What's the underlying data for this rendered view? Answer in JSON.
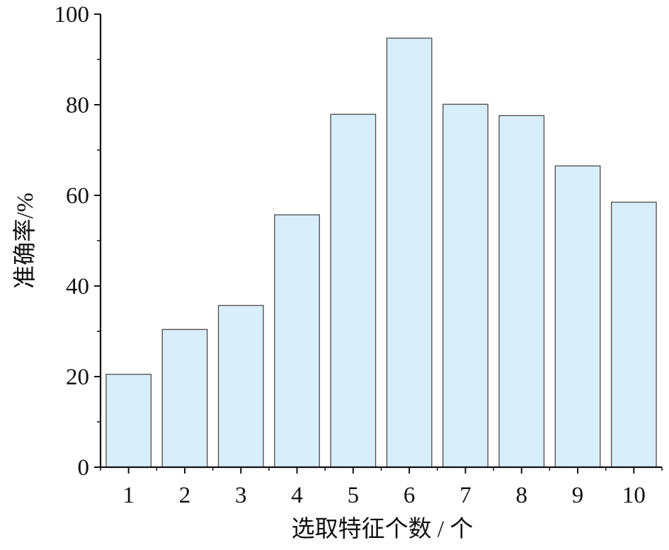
{
  "chart_data": {
    "type": "bar",
    "title": "",
    "xlabel": "选取特征个数 / 个",
    "ylabel": "准确率/%",
    "categories": [
      "1",
      "2",
      "3",
      "4",
      "5",
      "6",
      "7",
      "8",
      "9",
      "10"
    ],
    "values": [
      20.5,
      30.4,
      35.7,
      55.7,
      77.9,
      94.7,
      80.1,
      77.6,
      66.5,
      58.5
    ],
    "ylim": [
      0,
      100
    ],
    "yticks": [
      "0",
      "20",
      "40",
      "60",
      "80",
      "100"
    ],
    "grid": false,
    "legend": "none",
    "bar_color": "#d9eefb",
    "bar_edge_color": "#555555"
  }
}
